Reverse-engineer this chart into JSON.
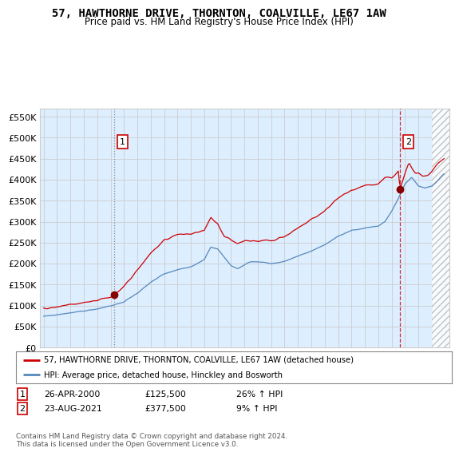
{
  "title": "57, HAWTHORNE DRIVE, THORNTON, COALVILLE, LE67 1AW",
  "subtitle": "Price paid vs. HM Land Registry's House Price Index (HPI)",
  "legend_label_red": "57, HAWTHORNE DRIVE, THORNTON, COALVILLE, LE67 1AW (detached house)",
  "legend_label_blue": "HPI: Average price, detached house, Hinckley and Bosworth",
  "annotation1_date": "26-APR-2000",
  "annotation1_price": "£125,500",
  "annotation1_hpi": "26% ↑ HPI",
  "annotation2_date": "23-AUG-2021",
  "annotation2_price": "£377,500",
  "annotation2_hpi": "9% ↑ HPI",
  "footer": "Contains HM Land Registry data © Crown copyright and database right 2024.\nThis data is licensed under the Open Government Licence v3.0.",
  "red_color": "#cc0000",
  "blue_color": "#5588bb",
  "blue_fill": "#ddeeff",
  "background_color": "#ffffff",
  "grid_color": "#cccccc",
  "ylim": [
    0,
    570000
  ],
  "yticks": [
    0,
    50000,
    100000,
    150000,
    200000,
    250000,
    300000,
    350000,
    400000,
    450000,
    500000,
    550000
  ],
  "purchase1_year": 2000.29,
  "purchase1_value": 125500,
  "purchase2_year": 2021.63,
  "purchase2_value": 377500,
  "hatch_start": 2024.0,
  "xlim_start": 1994.7,
  "xlim_end": 2025.3
}
